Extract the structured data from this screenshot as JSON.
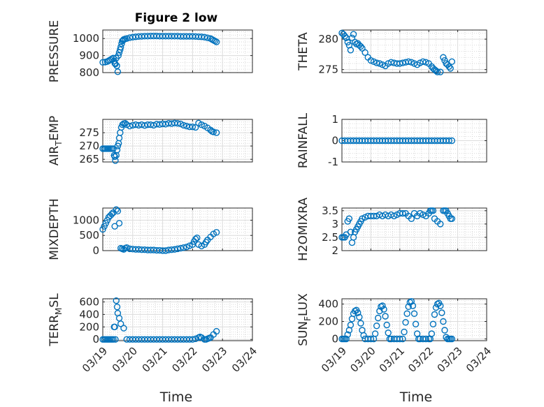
{
  "title": "Figure 2 low",
  "xlabel": "Time",
  "xticks": [
    "03/19",
    "03/20",
    "03/21",
    "03/22",
    "03/23",
    "03/24"
  ],
  "marker_color": "#0072bd",
  "chart_data": [
    {
      "type": "scatter",
      "ylabel_main": "PRESSURE",
      "ylabel_sub": "",
      "ylabel_tail": "",
      "ylim": [
        800,
        1050
      ],
      "yticks": [
        800,
        900,
        1000
      ],
      "ytick_labels": [
        "800",
        "900",
        "1000"
      ],
      "x": [
        0.0,
        0.08,
        0.15,
        0.2,
        0.25,
        0.3,
        0.35,
        0.38,
        0.4,
        0.42,
        0.45,
        0.47,
        0.5,
        0.52,
        0.55,
        0.58,
        0.6,
        0.63,
        0.65,
        0.68,
        0.7,
        0.75,
        0.8,
        0.9,
        1.0,
        1.1,
        1.2,
        1.3,
        1.4,
        1.5,
        1.6,
        1.7,
        1.8,
        1.9,
        2.0,
        2.1,
        2.2,
        2.3,
        2.4,
        2.5,
        2.6,
        2.7,
        2.8,
        2.9,
        3.0,
        3.1,
        3.2,
        3.3,
        3.4,
        3.5,
        3.6,
        3.65,
        3.7,
        3.75,
        3.8
      ],
      "y": [
        860,
        862,
        865,
        870,
        875,
        880,
        885,
        868,
        855,
        850,
        885,
        840,
        805,
        900,
        918,
        935,
        950,
        970,
        985,
        990,
        995,
        998,
        1000,
        1005,
        1008,
        1010,
        1012,
        1013,
        1014,
        1014,
        1015,
        1015,
        1015,
        1014,
        1014,
        1014,
        1014,
        1014,
        1014,
        1014,
        1013,
        1013,
        1013,
        1013,
        1013,
        1012,
        1011,
        1010,
        1008,
        1004,
        1000,
        995,
        990,
        985,
        980
      ]
    },
    {
      "type": "scatter",
      "ylabel_main": "THETA",
      "ylabel_sub": "",
      "ylabel_tail": "",
      "ylim": [
        274.5,
        281.5
      ],
      "yticks": [
        275,
        280
      ],
      "ytick_labels": [
        "275",
        "280"
      ],
      "x": [
        0.0,
        0.05,
        0.1,
        0.15,
        0.2,
        0.25,
        0.3,
        0.35,
        0.4,
        0.45,
        0.5,
        0.55,
        0.6,
        0.65,
        0.7,
        0.8,
        0.9,
        1.0,
        1.1,
        1.2,
        1.3,
        1.4,
        1.5,
        1.6,
        1.7,
        1.8,
        1.9,
        2.0,
        2.1,
        2.2,
        2.3,
        2.4,
        2.5,
        2.6,
        2.7,
        2.8,
        2.9,
        3.0,
        3.1,
        3.15,
        3.2,
        3.25,
        3.3,
        3.4,
        3.5,
        3.55,
        3.6,
        3.65,
        3.7,
        3.75,
        3.8
      ],
      "y": [
        281,
        280.8,
        280.5,
        280.2,
        279.5,
        279,
        278.2,
        280.2,
        280.8,
        279.5,
        279.2,
        279.3,
        279,
        278.8,
        278.5,
        277.8,
        277,
        276.5,
        276.3,
        276.1,
        276,
        275.8,
        275.6,
        276,
        276.2,
        276.1,
        276,
        276,
        276.1,
        276.2,
        276.3,
        276.2,
        276,
        275.8,
        276.1,
        276.3,
        276.2,
        276,
        275.5,
        275.2,
        275,
        274.8,
        274.6,
        274.6,
        277,
        276.5,
        276,
        275.8,
        275.5,
        275.2,
        276.3
      ]
    },
    {
      "type": "scatter",
      "ylabel_main": "AIR",
      "ylabel_sub": "T",
      "ylabel_tail": "EMP",
      "ylim": [
        264,
        280
      ],
      "yticks": [
        265,
        270,
        275
      ],
      "ytick_labels": [
        "265",
        "270",
        "275"
      ],
      "x": [
        0.0,
        0.05,
        0.1,
        0.15,
        0.2,
        0.25,
        0.3,
        0.35,
        0.38,
        0.4,
        0.42,
        0.45,
        0.48,
        0.5,
        0.53,
        0.55,
        0.58,
        0.62,
        0.66,
        0.7,
        0.75,
        0.8,
        0.9,
        1.0,
        1.1,
        1.2,
        1.3,
        1.4,
        1.5,
        1.6,
        1.7,
        1.8,
        1.9,
        2.0,
        2.1,
        2.2,
        2.3,
        2.4,
        2.5,
        2.6,
        2.7,
        2.8,
        2.9,
        3.0,
        3.1,
        3.2,
        3.3,
        3.4,
        3.5,
        3.6,
        3.65,
        3.7,
        3.8
      ],
      "y": [
        269,
        269,
        269,
        269,
        269,
        269,
        269,
        269,
        266.5,
        266,
        264.5,
        266.5,
        268.5,
        270,
        271,
        273,
        275,
        277,
        278,
        278.4,
        278.5,
        278,
        277.5,
        277.8,
        278,
        277.8,
        278,
        277.7,
        278,
        278,
        277.8,
        278.2,
        278.1,
        278.3,
        278.2,
        278.5,
        278.4,
        278.6,
        278.5,
        278.3,
        277.8,
        277.5,
        277.2,
        277.2,
        277,
        278.6,
        278,
        277.5,
        276.8,
        276,
        275.5,
        275.3,
        275
      ]
    },
    {
      "type": "scatter",
      "ylabel_main": "RAINFALL",
      "ylabel_sub": "",
      "ylabel_tail": "",
      "ylim": [
        -1,
        1
      ],
      "yticks": [
        -1,
        0,
        1
      ],
      "ytick_labels": [
        "-1",
        "0",
        "1"
      ],
      "x": [
        0.0,
        0.1,
        0.2,
        0.3,
        0.4,
        0.5,
        0.6,
        0.7,
        0.8,
        0.9,
        1.0,
        1.1,
        1.2,
        1.3,
        1.4,
        1.5,
        1.6,
        1.7,
        1.8,
        1.9,
        2.0,
        2.1,
        2.2,
        2.3,
        2.4,
        2.5,
        2.6,
        2.7,
        2.8,
        2.9,
        3.0,
        3.1,
        3.2,
        3.3,
        3.4,
        3.5,
        3.6,
        3.7,
        3.8
      ],
      "y": [
        0,
        0,
        0,
        0,
        0,
        0,
        0,
        0,
        0,
        0,
        0,
        0,
        0,
        0,
        0,
        0,
        0,
        0,
        0,
        0,
        0,
        0,
        0,
        0,
        0,
        0,
        0,
        0,
        0,
        0,
        0,
        0,
        0,
        0,
        0,
        0,
        0,
        0,
        0
      ]
    },
    {
      "type": "scatter",
      "ylabel_main": "MIXDEPTH",
      "ylabel_sub": "",
      "ylabel_tail": "",
      "ylim": [
        0,
        1400
      ],
      "yticks": [
        0,
        500,
        1000
      ],
      "ytick_labels": [
        "0",
        "500",
        "1000"
      ],
      "x": [
        0.0,
        0.05,
        0.1,
        0.15,
        0.2,
        0.25,
        0.3,
        0.35,
        0.4,
        0.45,
        0.5,
        0.55,
        0.6,
        0.65,
        0.7,
        0.75,
        0.8,
        0.9,
        1.0,
        1.1,
        1.2,
        1.3,
        1.4,
        1.5,
        1.6,
        1.7,
        1.8,
        1.9,
        2.0,
        2.1,
        2.2,
        2.3,
        2.4,
        2.5,
        2.6,
        2.7,
        2.8,
        2.9,
        3.0,
        3.05,
        3.1,
        3.15,
        3.2,
        3.3,
        3.4,
        3.45,
        3.5,
        3.6,
        3.7,
        3.8
      ],
      "y": [
        700,
        800,
        900,
        1000,
        1100,
        1150,
        1200,
        1250,
        800,
        1350,
        1300,
        900,
        80,
        60,
        40,
        80,
        100,
        60,
        50,
        40,
        40,
        30,
        30,
        20,
        20,
        20,
        10,
        10,
        0,
        0,
        20,
        30,
        40,
        60,
        80,
        100,
        120,
        160,
        200,
        300,
        380,
        420,
        200,
        150,
        200,
        280,
        350,
        450,
        550,
        600
      ]
    },
    {
      "type": "scatter",
      "ylabel_main": "H2OMIXRA",
      "ylabel_sub": "",
      "ylabel_tail": "",
      "ylim": [
        2,
        3.6
      ],
      "yticks": [
        2,
        2.5,
        3,
        3.5
      ],
      "ytick_labels": [
        "2",
        "2.5",
        "3",
        "3.5"
      ],
      "x": [
        0.0,
        0.05,
        0.1,
        0.15,
        0.2,
        0.25,
        0.3,
        0.35,
        0.4,
        0.45,
        0.5,
        0.55,
        0.6,
        0.65,
        0.7,
        0.8,
        0.9,
        1.0,
        1.1,
        1.2,
        1.3,
        1.4,
        1.5,
        1.6,
        1.7,
        1.8,
        1.9,
        2.0,
        2.1,
        2.2,
        2.3,
        2.4,
        2.5,
        2.6,
        2.7,
        2.8,
        2.9,
        3.0,
        3.05,
        3.1,
        3.15,
        3.2,
        3.3,
        3.4,
        3.5,
        3.55,
        3.6,
        3.65,
        3.7,
        3.75,
        3.8
      ],
      "y": [
        2.5,
        2.5,
        2.5,
        2.6,
        3.1,
        3.2,
        2.7,
        2.3,
        2.5,
        2.7,
        2.8,
        2.9,
        3,
        3.1,
        3.2,
        3.25,
        3.3,
        3.3,
        3.3,
        3.3,
        3.35,
        3.3,
        3.35,
        3.3,
        3.35,
        3.3,
        3.35,
        3.4,
        3.4,
        3.4,
        3.3,
        3.2,
        3.4,
        3.3,
        3.4,
        3.35,
        3.3,
        3.4,
        3.5,
        3.5,
        3.5,
        3.2,
        3.1,
        3.0,
        3.5,
        3.5,
        3.5,
        3.4,
        3.3,
        3.2,
        3.2
      ]
    },
    {
      "type": "scatter",
      "ylabel_main": "TERR",
      "ylabel_sub": "M",
      "ylabel_tail": "SL",
      "ylim": [
        -20,
        650
      ],
      "yticks": [
        0,
        200,
        400,
        600
      ],
      "ytick_labels": [
        "0",
        "200",
        "400",
        "600"
      ],
      "x": [
        0.0,
        0.05,
        0.1,
        0.15,
        0.2,
        0.25,
        0.3,
        0.35,
        0.38,
        0.4,
        0.42,
        0.45,
        0.48,
        0.5,
        0.55,
        0.6,
        0.7,
        0.8,
        0.9,
        1.0,
        1.1,
        1.2,
        1.3,
        1.4,
        1.5,
        1.6,
        1.7,
        1.8,
        1.9,
        2.0,
        2.1,
        2.2,
        2.3,
        2.4,
        2.5,
        2.6,
        2.7,
        2.8,
        2.9,
        3.0,
        3.1,
        3.2,
        3.25,
        3.3,
        3.4,
        3.45,
        3.5,
        3.55,
        3.6,
        3.7,
        3.8
      ],
      "y": [
        0,
        0,
        0,
        0,
        0,
        0,
        0,
        0,
        200,
        200,
        0,
        620,
        520,
        420,
        340,
        250,
        180,
        0,
        0,
        0,
        0,
        0,
        0,
        0,
        0,
        0,
        0,
        0,
        0,
        0,
        0,
        0,
        0,
        0,
        0,
        0,
        0,
        0,
        0,
        0,
        10,
        30,
        40,
        30,
        0,
        0,
        10,
        20,
        30,
        80,
        130
      ]
    },
    {
      "type": "scatter",
      "ylabel_main": "SUN",
      "ylabel_sub": "F",
      "ylabel_tail": "LUX",
      "ylim": [
        -20,
        460
      ],
      "yticks": [
        0,
        200,
        400
      ],
      "ytick_labels": [
        "0",
        "200",
        "400"
      ],
      "x": [
        0.0,
        0.05,
        0.1,
        0.15,
        0.2,
        0.25,
        0.3,
        0.35,
        0.4,
        0.45,
        0.5,
        0.55,
        0.6,
        0.65,
        0.7,
        0.75,
        0.8,
        0.9,
        1.0,
        1.1,
        1.15,
        1.2,
        1.25,
        1.3,
        1.35,
        1.4,
        1.45,
        1.5,
        1.55,
        1.6,
        1.65,
        1.7,
        1.8,
        1.9,
        2.0,
        2.1,
        2.15,
        2.2,
        2.25,
        2.3,
        2.35,
        2.4,
        2.45,
        2.5,
        2.55,
        2.6,
        2.65,
        2.7,
        2.8,
        2.9,
        3.0,
        3.05,
        3.1,
        3.15,
        3.2,
        3.25,
        3.3,
        3.35,
        3.4,
        3.45,
        3.5,
        3.55,
        3.6,
        3.65,
        3.7,
        3.75,
        3.8
      ],
      "y": [
        0,
        0,
        0,
        0,
        50,
        100,
        160,
        230,
        290,
        320,
        330,
        300,
        250,
        180,
        100,
        40,
        0,
        0,
        0,
        0,
        60,
        150,
        240,
        320,
        370,
        380,
        340,
        260,
        160,
        70,
        0,
        0,
        0,
        0,
        0,
        0,
        80,
        190,
        290,
        370,
        420,
        430,
        380,
        290,
        170,
        60,
        0,
        0,
        0,
        0,
        0,
        0,
        60,
        170,
        280,
        360,
        400,
        410,
        380,
        300,
        200,
        100,
        20,
        0,
        0,
        0,
        0
      ]
    }
  ]
}
